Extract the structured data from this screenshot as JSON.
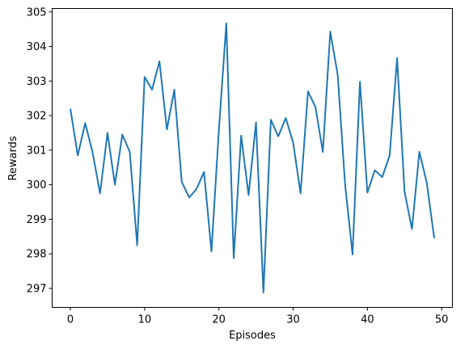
{
  "chart_data": {
    "type": "line",
    "title": "",
    "xlabel": "Episodes",
    "ylabel": "Rewards",
    "xlim": [
      -2.45,
      51.45
    ],
    "ylim": [
      296.45,
      305.1
    ],
    "x_ticks": [
      0,
      10,
      20,
      30,
      40,
      50
    ],
    "y_ticks": [
      297,
      298,
      299,
      300,
      301,
      302,
      303,
      304,
      305
    ],
    "grid": false,
    "legend": "none",
    "series": [
      {
        "color": "#1f77b4",
        "x": [
          0,
          1,
          2,
          3,
          4,
          5,
          6,
          7,
          8,
          9,
          10,
          11,
          12,
          13,
          14,
          15,
          16,
          17,
          18,
          19,
          20,
          21,
          22,
          23,
          24,
          25,
          26,
          27,
          28,
          29,
          30,
          31,
          32,
          33,
          34,
          35,
          36,
          37,
          38,
          39,
          40,
          41,
          42,
          43,
          44,
          45,
          46,
          47,
          48,
          49
        ],
        "values": [
          302.2,
          300.85,
          301.78,
          300.93,
          299.75,
          301.5,
          300.0,
          301.45,
          300.95,
          298.25,
          303.12,
          302.75,
          303.57,
          301.6,
          302.75,
          300.08,
          299.63,
          299.88,
          300.37,
          298.07,
          301.58,
          304.67,
          297.88,
          301.42,
          299.7,
          301.8,
          296.88,
          301.88,
          301.4,
          301.93,
          301.22,
          299.75,
          302.7,
          302.25,
          300.95,
          304.43,
          303.18,
          300.0,
          297.98,
          302.98,
          299.77,
          300.42,
          300.22,
          300.85,
          303.67,
          299.8,
          298.72,
          300.95,
          300.05,
          298.45
        ]
      }
    ]
  }
}
